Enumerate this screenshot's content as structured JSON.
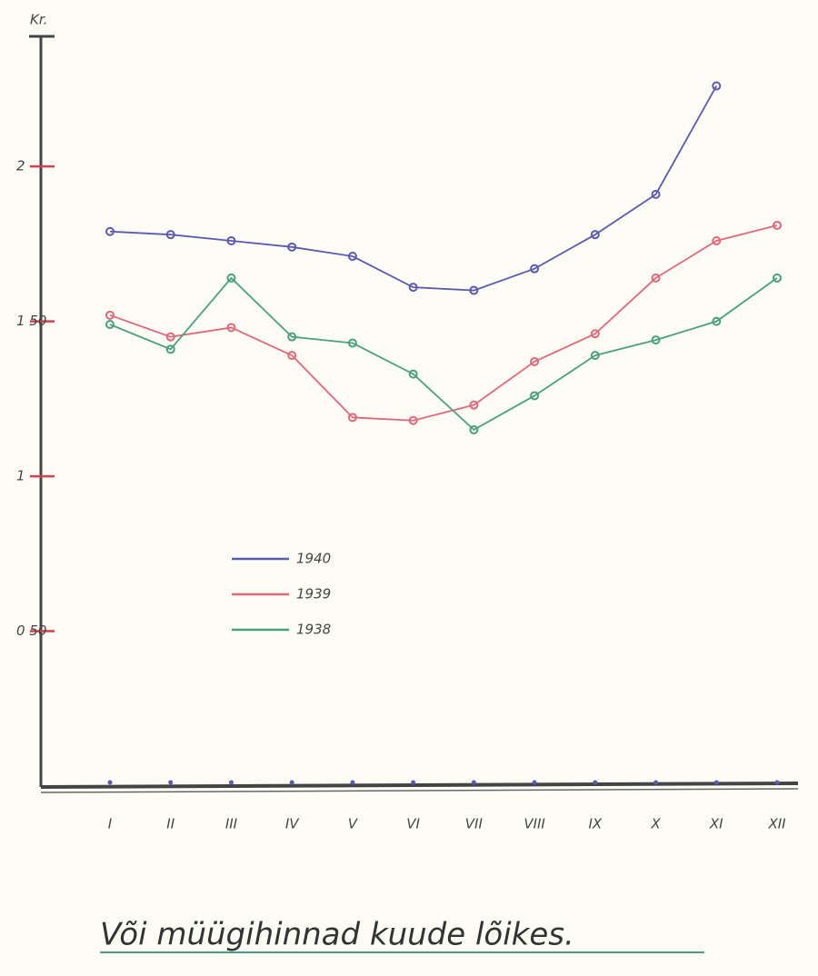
{
  "chart_data": {
    "type": "line",
    "title": "Või müügihinnad kuude lõikes.",
    "y_label": "Kr.",
    "categories": [
      "I",
      "II",
      "III",
      "IV",
      "V",
      "VI",
      "VII",
      "VIII",
      "IX",
      "X",
      "XI",
      "XII"
    ],
    "series": [
      {
        "name": "1940",
        "color": "#5a5ab4",
        "values": [
          1.79,
          1.78,
          1.76,
          1.74,
          1.71,
          1.61,
          1.6,
          1.67,
          1.78,
          1.91,
          2.26,
          null
        ]
      },
      {
        "name": "1939",
        "color": "#e0687a",
        "values": [
          1.52,
          1.45,
          1.48,
          1.39,
          1.19,
          1.18,
          1.23,
          1.37,
          1.46,
          1.64,
          1.76,
          1.81
        ]
      },
      {
        "name": "1938",
        "color": "#4aa07e",
        "values": [
          1.49,
          1.41,
          1.64,
          1.45,
          1.43,
          1.33,
          1.15,
          1.26,
          1.39,
          1.44,
          1.5,
          1.64
        ]
      }
    ],
    "ylim": [
      0,
      2.42
    ],
    "yticks": [
      {
        "value": 0.5,
        "label": "0 50"
      },
      1,
      {
        "value": 1.5,
        "label": "1 50"
      },
      2
    ]
  }
}
